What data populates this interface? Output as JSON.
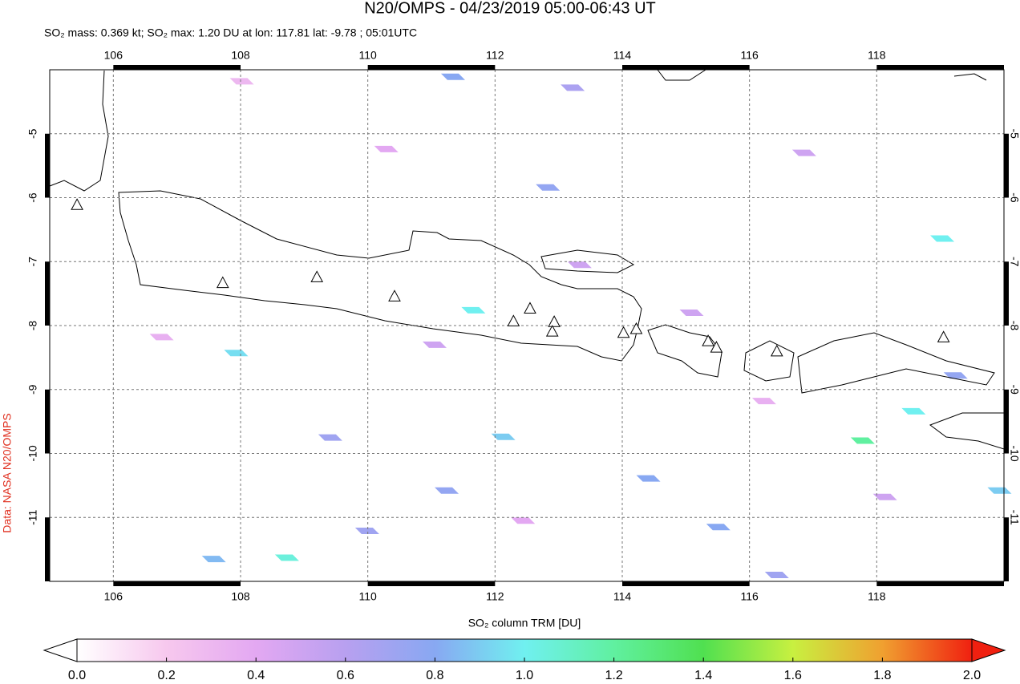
{
  "chart_data": {
    "type": "map",
    "title": "N20/OMPS - 04/23/2019 05:00-06:43 UT",
    "subtitle": "SO₂ mass: 0.369 kt; SO₂ max: 1.20 DU at lon: 117.81 lat: -9.78 ; 05:01UTC",
    "credit": "Data: NASA N20/OMPS",
    "xlim": [
      105,
      120
    ],
    "ylim": [
      -12,
      -4
    ],
    "xticks": [
      106,
      108,
      110,
      112,
      114,
      116,
      118
    ],
    "yticks": [
      -5,
      -6,
      -7,
      -8,
      -9,
      -10,
      -11
    ],
    "grid": true,
    "pixels": {
      "lon": [
        111.66,
        112.13,
        117.78,
        119.03,
        118.58,
        115.51,
        114.41,
        111.34,
        108.73,
        107.93,
        119.93,
        111.24,
        112.83,
        113.22,
        109.99,
        107.58,
        109.41,
        116.43,
        119.24,
        108.02,
        110.29,
        113.33,
        111.05,
        115.09,
        116.86,
        106.76,
        112.44,
        118.13,
        116.23
      ],
      "lat": [
        -7.76,
        -9.74,
        -9.8,
        -6.64,
        -9.34,
        -11.15,
        -10.39,
        -4.11,
        -11.63,
        -8.43,
        -10.58,
        -10.58,
        -5.84,
        -4.28,
        -11.21,
        -11.65,
        -9.75,
        -11.9,
        -8.78,
        -4.18,
        -5.24,
        -7.05,
        -8.3,
        -7.8,
        -5.3,
        -8.18,
        -11.05,
        -10.68,
        -9.18
      ],
      "values": [
        1.0,
        0.9,
        1.2,
        1.0,
        1.0,
        0.8,
        0.8,
        0.8,
        1.05,
        0.95,
        0.9,
        0.75,
        0.75,
        0.65,
        0.7,
        0.85,
        0.7,
        0.7,
        0.75,
        0.3,
        0.4,
        0.5,
        0.5,
        0.5,
        0.5,
        0.35,
        0.4,
        0.5,
        0.35
      ]
    },
    "volcanoes": {
      "lon": [
        105.43,
        107.72,
        109.2,
        110.42,
        112.29,
        112.55,
        112.93,
        112.9,
        114.02,
        114.22,
        115.35,
        115.48,
        116.43,
        119.05
      ],
      "lat": [
        -6.11,
        -7.33,
        -7.24,
        -7.54,
        -7.93,
        -7.73,
        -7.94,
        -8.09,
        -8.11,
        -8.05,
        -8.24,
        -8.34,
        -8.4,
        -8.18
      ]
    },
    "colorbar": {
      "label": "SO₂ column TRM [DU]",
      "lim": [
        0,
        2
      ],
      "colors": [
        "#ffffff",
        "#f7c8ee",
        "#e3a8f2",
        "#b8a0f0",
        "#88a8f2",
        "#70f0f0",
        "#60f0a0",
        "#50e050",
        "#c8f040",
        "#f0a030",
        "#f02010"
      ],
      "ticks": [
        {
          "value": 0,
          "label": "0.0"
        },
        {
          "value": 0.2,
          "label": "0.2"
        },
        {
          "value": 0.4,
          "label": "0.4"
        },
        {
          "value": 0.6,
          "label": "0.6"
        },
        {
          "value": 0.8,
          "label": "0.8"
        },
        {
          "value": 1,
          "label": "1.0"
        },
        {
          "value": 1.2,
          "label": "1.2"
        },
        {
          "value": 1.4,
          "label": "1.4"
        },
        {
          "value": 1.6,
          "label": "1.6"
        },
        {
          "value": 1.8,
          "label": "1.8"
        },
        {
          "value": 2,
          "label": "2.0"
        }
      ]
    }
  }
}
